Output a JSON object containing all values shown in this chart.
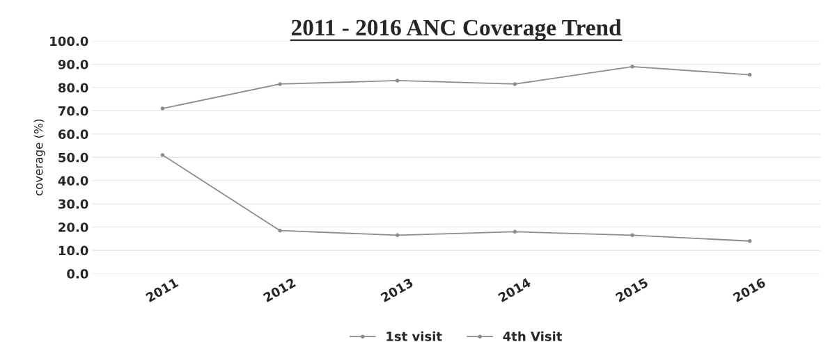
{
  "chart_data": {
    "type": "line",
    "title": "2011 - 2016 ANC Coverage Trend",
    "ylabel": "coverage (%)",
    "categories": [
      "2011",
      "2012",
      "2013",
      "2014",
      "2015",
      "2016"
    ],
    "series": [
      {
        "name": "1st visit",
        "color": "#8c8c8c",
        "values": [
          71,
          81.5,
          83,
          81.5,
          89,
          85.5
        ]
      },
      {
        "name": "4th Visit",
        "color": "#8c8c8c",
        "values": [
          51,
          18.5,
          16.5,
          18,
          16.5,
          14
        ]
      }
    ],
    "ylim": [
      0,
      100
    ],
    "yticks": [
      {
        "value": 0,
        "label": "0.0"
      },
      {
        "value": 10,
        "label": "10.0"
      },
      {
        "value": 20,
        "label": "20.0"
      },
      {
        "value": 30,
        "label": "30.0"
      },
      {
        "value": 40,
        "label": "40.0"
      },
      {
        "value": 50,
        "label": "50.0"
      },
      {
        "value": 60,
        "label": "60.0"
      },
      {
        "value": 70,
        "label": "70.0"
      },
      {
        "value": 80,
        "label": "80.0"
      },
      {
        "value": 90,
        "label": "90.0"
      },
      {
        "value": 100,
        "label": "100.0"
      }
    ],
    "grid": "y",
    "legend": "bottom",
    "marker": "circle",
    "line_style": "solid"
  }
}
